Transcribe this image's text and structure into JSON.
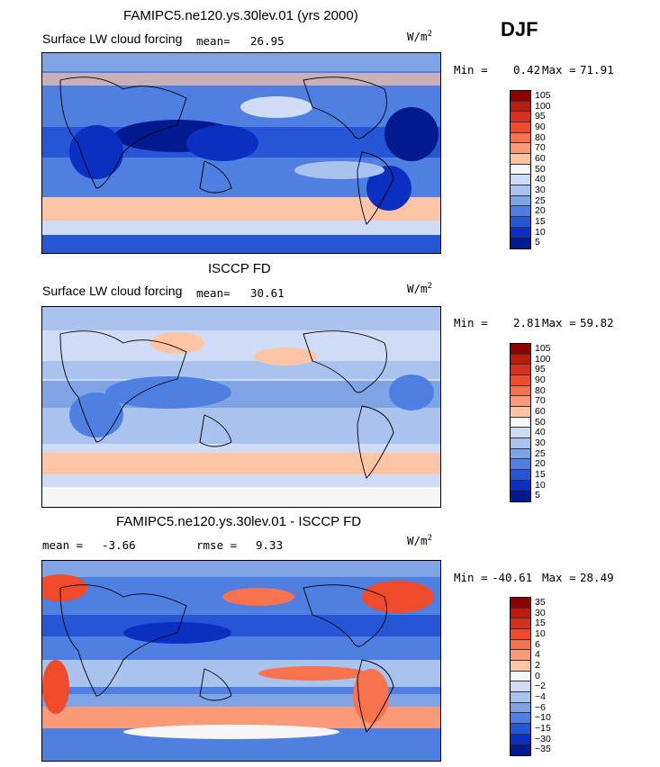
{
  "season": "DJF",
  "panels": [
    {
      "title": "FAMIPC5.ne120.ys.30lev.01 (yrs 2000)",
      "field_label": "Surface LW cloud forcing",
      "mean_label": "mean=",
      "mean_value": "26.95",
      "units": "W/m",
      "units_sup": "2",
      "min_label": "Min =",
      "min_value": "0.42",
      "max_label": "Max =",
      "max_value": "71.91",
      "levels": [
        "105",
        "100",
        "95",
        "90",
        "80",
        "70",
        "60",
        "50",
        "40",
        "30",
        "25",
        "20",
        "15",
        "10",
        "5"
      ],
      "colors": [
        "#8b0000",
        "#b71c0c",
        "#d7301f",
        "#ef4a2a",
        "#f7734d",
        "#fb9a76",
        "#fdc4a6",
        "#f7f7f7",
        "#d0dcf5",
        "#aac3ee",
        "#7ea4e6",
        "#4f7fe0",
        "#2456d6",
        "#0b2fc0",
        "#011a8f"
      ]
    },
    {
      "title": "ISCCP FD",
      "field_label": "Surface LW cloud forcing",
      "mean_label": "mean=",
      "mean_value": "30.61",
      "units": "W/m",
      "units_sup": "2",
      "min_label": "Min =",
      "min_value": "2.81",
      "max_label": "Max =",
      "max_value": "59.82",
      "levels": [
        "105",
        "100",
        "95",
        "90",
        "80",
        "70",
        "60",
        "50",
        "40",
        "30",
        "25",
        "20",
        "15",
        "10",
        "5"
      ],
      "colors": [
        "#8b0000",
        "#b71c0c",
        "#d7301f",
        "#ef4a2a",
        "#f7734d",
        "#fb9a76",
        "#fdc4a6",
        "#f7f7f7",
        "#d0dcf5",
        "#aac3ee",
        "#7ea4e6",
        "#4f7fe0",
        "#2456d6",
        "#0b2fc0",
        "#011a8f"
      ]
    },
    {
      "title": "FAMIPC5.ne120.ys.30lev.01 - ISCCP FD",
      "mean_label": "mean =",
      "mean_value": "-3.66",
      "rmse_label": "rmse =",
      "rmse_value": "9.33",
      "units": "W/m",
      "units_sup": "2",
      "min_label": "Min =",
      "min_value": "-40.61",
      "max_label": "Max =",
      "max_value": "28.49",
      "levels": [
        "35",
        "30",
        "15",
        "10",
        "6",
        "4",
        "2",
        "0",
        "−2",
        "−4",
        "−6",
        "−10",
        "−15",
        "−30",
        "−35"
      ],
      "colors": [
        "#8b0000",
        "#b71c0c",
        "#d7301f",
        "#ef4a2a",
        "#f7734d",
        "#fb9a76",
        "#fdc4a6",
        "#f7f7f7",
        "#d0dcf5",
        "#aac3ee",
        "#7ea4e6",
        "#4f7fe0",
        "#2456d6",
        "#0b2fc0",
        "#011a8f"
      ]
    }
  ]
}
